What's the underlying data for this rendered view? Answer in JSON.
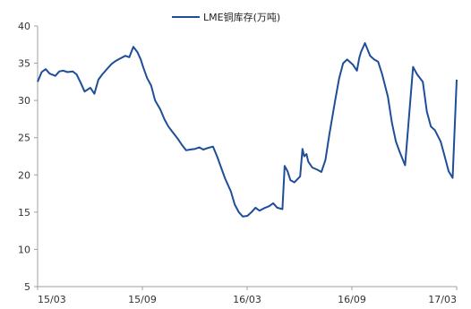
{
  "chart_data": {
    "type": "line",
    "title": "",
    "xlabel": "",
    "ylabel": "",
    "ylim": [
      5,
      40
    ],
    "yticks": [
      5,
      10,
      15,
      20,
      25,
      30,
      35,
      40
    ],
    "xticks": [
      "15/03",
      "15/09",
      "16/03",
      "16/09",
      "17/03"
    ],
    "grid": false,
    "legend_position": "top-center",
    "series": [
      {
        "name": "LME铜库存(万吨)",
        "color": "#1f4e99",
        "x": [
          "2015-03-01",
          "2015-03-08",
          "2015-03-15",
          "2015-03-22",
          "2015-04-01",
          "2015-04-08",
          "2015-04-15",
          "2015-04-22",
          "2015-05-01",
          "2015-05-08",
          "2015-05-15",
          "2015-05-22",
          "2015-06-01",
          "2015-06-08",
          "2015-06-15",
          "2015-06-22",
          "2015-07-01",
          "2015-07-08",
          "2015-07-15",
          "2015-07-22",
          "2015-08-01",
          "2015-08-08",
          "2015-08-15",
          "2015-08-22",
          "2015-08-28",
          "2015-09-01",
          "2015-09-08",
          "2015-09-15",
          "2015-09-22",
          "2015-10-01",
          "2015-10-08",
          "2015-10-15",
          "2015-10-22",
          "2015-11-01",
          "2015-11-08",
          "2015-11-15",
          "2015-11-22",
          "2015-12-01",
          "2015-12-08",
          "2015-12-15",
          "2015-12-22",
          "2016-01-01",
          "2016-01-08",
          "2016-01-15",
          "2016-01-22",
          "2016-02-01",
          "2016-02-08",
          "2016-02-15",
          "2016-02-22",
          "2016-03-01",
          "2016-03-08",
          "2016-03-15",
          "2016-03-22",
          "2016-04-01",
          "2016-04-08",
          "2016-04-15",
          "2016-04-22",
          "2016-05-01",
          "2016-05-05",
          "2016-05-10",
          "2016-05-15",
          "2016-05-22",
          "2016-06-01",
          "2016-06-05",
          "2016-06-08",
          "2016-06-12",
          "2016-06-15",
          "2016-06-22",
          "2016-07-01",
          "2016-07-08",
          "2016-07-15",
          "2016-07-22",
          "2016-08-01",
          "2016-08-08",
          "2016-08-15",
          "2016-08-22",
          "2016-09-01",
          "2016-09-08",
          "2016-09-12",
          "2016-09-15",
          "2016-09-22",
          "2016-10-01",
          "2016-10-08",
          "2016-10-15",
          "2016-10-22",
          "2016-11-01",
          "2016-11-08",
          "2016-11-15",
          "2016-11-22",
          "2016-12-01",
          "2016-12-08",
          "2016-12-15",
          "2016-12-22",
          "2017-01-01",
          "2017-01-08",
          "2017-01-15",
          "2017-01-22",
          "2017-02-01",
          "2017-02-08",
          "2017-02-15",
          "2017-02-22",
          "2017-03-01"
        ],
        "values": [
          32.5,
          33.8,
          34.2,
          33.6,
          33.3,
          33.9,
          34.0,
          33.8,
          33.9,
          33.5,
          32.4,
          31.2,
          31.7,
          30.9,
          32.8,
          33.5,
          34.3,
          34.9,
          35.3,
          35.6,
          36.0,
          35.8,
          37.2,
          36.5,
          35.5,
          34.5,
          33.0,
          32.0,
          30.0,
          28.8,
          27.5,
          26.5,
          25.8,
          24.8,
          24.0,
          23.3,
          23.4,
          23.5,
          23.7,
          23.4,
          23.6,
          23.8,
          22.5,
          21.0,
          19.5,
          17.8,
          16.0,
          15.0,
          14.4,
          14.5,
          15.0,
          15.6,
          15.2,
          15.6,
          15.8,
          16.2,
          15.6,
          15.4,
          21.2,
          20.5,
          19.3,
          19.0,
          19.8,
          23.5,
          22.5,
          22.8,
          21.8,
          21.0,
          20.7,
          20.4,
          22.0,
          25.5,
          30.0,
          33.0,
          35.0,
          35.5,
          34.8,
          34.0,
          35.7,
          36.5,
          37.7,
          36.0,
          35.5,
          35.2,
          33.5,
          30.5,
          27.0,
          24.5,
          23.0,
          21.3,
          28.0,
          34.5,
          33.5,
          32.5,
          28.5,
          26.5,
          26.0,
          24.5,
          22.5,
          20.5,
          19.6,
          32.8
        ]
      }
    ]
  }
}
